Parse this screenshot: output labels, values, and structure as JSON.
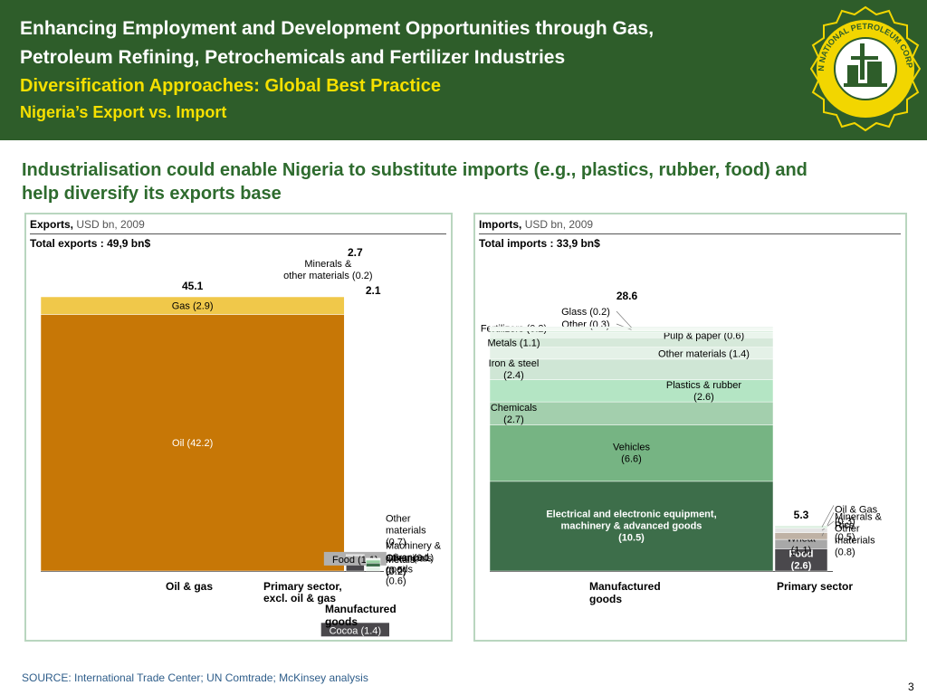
{
  "header": {
    "line1": "Enhancing Employment and Development Opportunities through Gas,",
    "line2": "Petroleum Refining, Petrochemicals and Fertilizer Industries",
    "line3": "Diversification Approaches: Global Best Practice",
    "line4": "Nigeria’s Export vs. Import",
    "logo_text": "NIGERIAN NATIONAL PETROLEUM CORPORATION"
  },
  "subtitle": "Industrialisation could enable Nigeria to substitute imports (e.g., plastics, rubber, food)  and help diversify its exports base",
  "exports": {
    "title": "Exports,",
    "unit": "USD bn, 2009",
    "total_label": "Total exports : 49,9 bn$"
  },
  "imports": {
    "title": "Imports,",
    "unit": "USD bn, 2009",
    "total_label": "Total imports :  33,9 bn$"
  },
  "chart_data": [
    {
      "type": "bar",
      "stacked": true,
      "variable_width": true,
      "title": "Exports, USD bn, 2009",
      "categories": [
        "Oil & gas",
        "Primary sector, excl. oil & gas",
        "Manufactured goods"
      ],
      "totals": [
        45.1,
        2.7,
        2.1
      ],
      "total_labels": [
        "45.1",
        "2.7",
        "2.1"
      ],
      "segments": [
        [
          {
            "label": "Oil (42.2)",
            "value": 42.2,
            "color": "#c77706"
          },
          {
            "label": "Gas (2.9)",
            "value": 2.9,
            "color": "#f0c84a"
          }
        ],
        [
          {
            "label": "Cocoa (1.4)",
            "value": 1.4,
            "color": "#4a484c"
          },
          {
            "label": "Food (1.1)",
            "value": 1.1,
            "color": "#a8a8a8"
          },
          {
            "label": "Minerals & other materials (0.2)",
            "value": 0.2,
            "color": "#e3e3e3"
          }
        ],
        [
          {
            "label": "Other materials (0.7)",
            "value": 0.7,
            "color": "#e3f1e6"
          },
          {
            "label": "Machinery & advanced goods (0.6)",
            "value": 0.6,
            "color": "#3d6e4a"
          },
          {
            "label": "Chemicals (0.5)",
            "value": 0.5,
            "color": "#96cf9f"
          },
          {
            "label": "Metals (0.2)",
            "value": 0.2,
            "color": "#dcefe0"
          },
          {
            "label": "Other (0.1)",
            "value": 0.1,
            "color": "#eef7f0"
          }
        ]
      ]
    },
    {
      "type": "bar",
      "stacked": true,
      "variable_width": true,
      "title": "Imports, USD bn, 2009",
      "categories": [
        "Manufactured goods",
        "Primary sector"
      ],
      "totals": [
        28.6,
        5.3
      ],
      "total_labels": [
        "28.6",
        "5.3"
      ],
      "segments": [
        [
          {
            "label": "Electrical and electronic equipment, machinery & advanced goods (10.5)",
            "value": 10.5,
            "color": "#3d6e4a"
          },
          {
            "label": "Vehicles (6.6)",
            "value": 6.6,
            "color": "#76b483"
          },
          {
            "label": "Chemicals (2.7)",
            "value": 2.7,
            "color": "#a3cfad"
          },
          {
            "label": "Plastics & rubber (2.6)",
            "value": 2.6,
            "color": "#b4e5c4"
          },
          {
            "label": "Iron & steel (2.4)",
            "value": 2.4,
            "color": "#cfe6d5"
          },
          {
            "label": "Other materials (1.4)",
            "value": 1.4,
            "color": "#e4f1e7"
          },
          {
            "label": "Metals (1.1)",
            "value": 1.1,
            "color": "#d6e9da"
          },
          {
            "label": "Pulp & paper (0.6)",
            "value": 0.6,
            "color": "#eaf5ec"
          },
          {
            "label": "Fertilizers (0.2)",
            "value": 0.2,
            "color": "#dcefe0"
          },
          {
            "label": "Other (0.3)",
            "value": 0.3,
            "color": "#f2f9f3"
          },
          {
            "label": "Glass (0.2)",
            "value": 0.2,
            "color": "#e8f3ea"
          }
        ],
        [
          {
            "label": "Food (2.6)",
            "value": 2.6,
            "color": "#4a484c"
          },
          {
            "label": "Wheat (1.1)",
            "value": 1.1,
            "color": "#a8a8a8"
          },
          {
            "label": "Minerals & Other materials (0.8)",
            "value": 0.8,
            "color": "#bfb2a5"
          },
          {
            "label": "Rice (0.5)",
            "value": 0.5,
            "color": "#e3e3e3"
          },
          {
            "label": "Oil & Gas (0.3)",
            "value": 0.3,
            "color": "#dcefe0"
          }
        ]
      ]
    }
  ],
  "footer": {
    "source": "SOURCE: International Trade Center; UN Comtrade; McKinsey analysis",
    "page": "3"
  }
}
